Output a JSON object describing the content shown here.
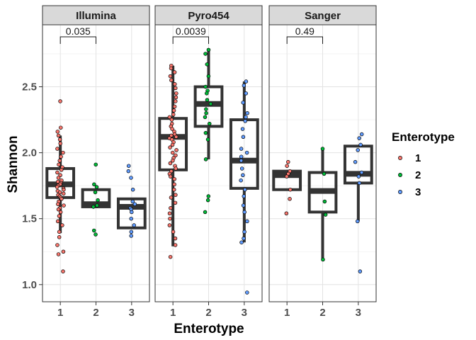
{
  "chart_data": {
    "type": "boxplot",
    "xlabel": "Enterotype",
    "ylabel": "Shannon",
    "ylim": [
      0.87,
      2.97
    ],
    "yticks": [
      1.0,
      1.5,
      2.0,
      2.5
    ],
    "ytick_labels": [
      "1.0",
      "1.5",
      "2.0",
      "2.5"
    ],
    "categories": [
      "1",
      "2",
      "3"
    ],
    "grid": true,
    "legend": {
      "title": "Enterotype",
      "placement": "right",
      "entries": [
        {
          "label": "1",
          "color": "#F8766D"
        },
        {
          "label": "2",
          "color": "#00BA38"
        },
        {
          "label": "3",
          "color": "#619CFF"
        }
      ]
    },
    "panels": [
      {
        "name": "Illumina",
        "comparison": {
          "groups": [
            "1",
            "2"
          ],
          "pvalue": "0.035"
        },
        "boxes": [
          {
            "group": "1",
            "q1": 1.66,
            "median": 1.76,
            "q3": 1.88,
            "whisker_low": 1.39,
            "whisker_high": 2.13
          },
          {
            "group": "2",
            "q1": 1.59,
            "median": 1.61,
            "q3": 1.72,
            "whisker_low": 1.59,
            "whisker_high": 1.72
          },
          {
            "group": "3",
            "q1": 1.43,
            "median": 1.59,
            "q3": 1.65,
            "whisker_low": 1.43,
            "whisker_high": 1.65
          }
        ],
        "points": [
          {
            "group": "1",
            "values": [
              2.39,
              2.19,
              2.16,
              2.13,
              2.1,
              2.07,
              2.03,
              2.0,
              1.97,
              1.94,
              1.91,
              1.89,
              1.87,
              1.85,
              1.83,
              1.81,
              1.79,
              1.78,
              1.77,
              1.76,
              1.75,
              1.74,
              1.73,
              1.72,
              1.71,
              1.7,
              1.69,
              1.68,
              1.67,
              1.66,
              1.65,
              1.63,
              1.61,
              1.6,
              1.58,
              1.57,
              1.55,
              1.52,
              1.48,
              1.45,
              1.4,
              1.36,
              1.3,
              1.25,
              1.23,
              1.1
            ]
          },
          {
            "group": "2",
            "values": [
              1.91,
              1.76,
              1.74,
              1.7,
              1.64,
              1.6,
              1.59,
              1.41,
              1.38
            ]
          },
          {
            "group": "3",
            "values": [
              1.9,
              1.86,
              1.81,
              1.72,
              1.63,
              1.61,
              1.58,
              1.57,
              1.55,
              1.5,
              1.45,
              1.4,
              1.37
            ]
          }
        ]
      },
      {
        "name": "Pyro454",
        "comparison": {
          "groups": [
            "1",
            "2"
          ],
          "pvalue": "0.0039"
        },
        "boxes": [
          {
            "group": "1",
            "q1": 1.87,
            "median": 2.12,
            "q3": 2.26,
            "whisker_low": 1.29,
            "whisker_high": 2.66
          },
          {
            "group": "2",
            "q1": 2.2,
            "median": 2.37,
            "q3": 2.5,
            "whisker_low": 1.95,
            "whisker_high": 2.78
          },
          {
            "group": "3",
            "q1": 1.73,
            "median": 1.94,
            "q3": 2.25,
            "whisker_low": 1.32,
            "whisker_high": 2.54
          }
        ],
        "points": [
          {
            "group": "1",
            "values": [
              2.66,
              2.64,
              2.61,
              2.58,
              2.55,
              2.52,
              2.49,
              2.45,
              2.42,
              2.39,
              2.35,
              2.32,
              2.29,
              2.27,
              2.25,
              2.22,
              2.2,
              2.18,
              2.16,
              2.14,
              2.13,
              2.12,
              2.11,
              2.1,
              2.08,
              2.06,
              2.04,
              2.02,
              2.0,
              1.98,
              1.96,
              1.94,
              1.92,
              1.9,
              1.88,
              1.86,
              1.84,
              1.82,
              1.8,
              1.76,
              1.72,
              1.68,
              1.66,
              1.62,
              1.58,
              1.54,
              1.5,
              1.45,
              1.4,
              1.35,
              1.3,
              1.21
            ]
          },
          {
            "group": "2",
            "values": [
              2.78,
              2.75,
              2.67,
              2.58,
              2.5,
              2.47,
              2.45,
              2.4,
              2.37,
              2.33,
              2.3,
              2.27,
              2.22,
              2.15,
              2.1,
              1.95,
              1.67,
              1.64,
              1.55
            ]
          },
          {
            "group": "3",
            "values": [
              2.54,
              2.51,
              2.45,
              2.38,
              2.3,
              2.27,
              2.24,
              2.18,
              2.12,
              2.03,
              2.0,
              1.97,
              1.94,
              1.88,
              1.83,
              1.79,
              1.72,
              1.67,
              1.6,
              1.55,
              1.48,
              1.4,
              1.35,
              1.32,
              0.94
            ]
          }
        ]
      },
      {
        "name": "Sanger",
        "comparison": {
          "groups": [
            "1",
            "2"
          ],
          "pvalue": "0.49"
        },
        "boxes": [
          {
            "group": "1",
            "q1": 1.72,
            "median": 1.83,
            "q3": 1.86,
            "whisker_low": 1.72,
            "whisker_high": 1.86
          },
          {
            "group": "2",
            "q1": 1.55,
            "median": 1.71,
            "q3": 1.85,
            "whisker_low": 1.19,
            "whisker_high": 2.02
          },
          {
            "group": "3",
            "q1": 1.77,
            "median": 1.84,
            "q3": 2.05,
            "whisker_low": 1.48,
            "whisker_high": 2.05
          }
        ],
        "points": [
          {
            "group": "1",
            "values": [
              1.93,
              1.9,
              1.86,
              1.84,
              1.82,
              1.72,
              1.65,
              1.54
            ]
          },
          {
            "group": "2",
            "values": [
              2.03,
              1.84,
              1.63,
              1.53,
              1.19
            ]
          },
          {
            "group": "3",
            "values": [
              2.14,
              2.11,
              2.06,
              2.02,
              1.93,
              1.85,
              1.82,
              1.77,
              1.48,
              1.1
            ]
          }
        ]
      }
    ]
  }
}
